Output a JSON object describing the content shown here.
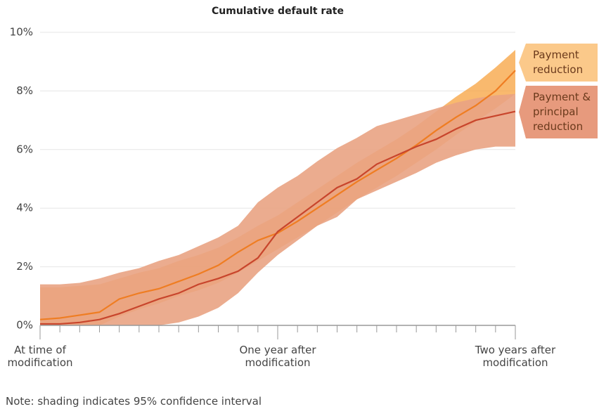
{
  "chart_data": {
    "type": "line",
    "title": "Cumulative default rate",
    "note": "Note: shading indicates 95% confidence interval",
    "x": [
      0,
      1,
      2,
      3,
      4,
      5,
      6,
      7,
      8,
      9,
      10,
      11,
      12,
      13,
      14,
      15,
      16,
      17,
      18,
      19,
      20,
      21,
      22,
      23,
      24
    ],
    "xlim": [
      0,
      24
    ],
    "xticks": [
      {
        "value": 0,
        "label": "At time of modification"
      },
      {
        "value": 12,
        "label": "One year after modification"
      },
      {
        "value": 24,
        "label": "Two years after modification"
      }
    ],
    "ylim": [
      0,
      10
    ],
    "yticks": [
      {
        "value": 0,
        "label": "0%"
      },
      {
        "value": 2,
        "label": "2%"
      },
      {
        "value": 4,
        "label": "4%"
      },
      {
        "value": 6,
        "label": "6%"
      },
      {
        "value": 8,
        "label": "8%"
      },
      {
        "value": 10,
        "label": "10%"
      }
    ],
    "grid": true,
    "legend": "right",
    "series": [
      {
        "name": "Payment reduction",
        "color": "#ef7d22",
        "band_color": "#f7a84a",
        "legend_color": "#fbc98a",
        "values": [
          0.2,
          0.25,
          0.35,
          0.45,
          0.9,
          1.1,
          1.25,
          1.5,
          1.75,
          2.05,
          2.5,
          2.9,
          3.15,
          3.55,
          4.0,
          4.45,
          4.9,
          5.3,
          5.7,
          6.15,
          6.65,
          7.1,
          7.5,
          8.0,
          8.7
        ],
        "lower": [
          0,
          0,
          0,
          0,
          0.3,
          0.55,
          0.75,
          1.0,
          1.2,
          1.45,
          1.8,
          2.2,
          2.6,
          3.0,
          3.4,
          3.85,
          4.3,
          4.7,
          5.1,
          5.55,
          6.0,
          6.5,
          6.95,
          7.4,
          7.9
        ],
        "upper": [
          1.3,
          1.3,
          1.35,
          1.4,
          1.6,
          1.8,
          1.95,
          2.2,
          2.4,
          2.65,
          3.0,
          3.4,
          3.75,
          4.2,
          4.65,
          5.1,
          5.55,
          5.95,
          6.35,
          6.8,
          7.3,
          7.8,
          8.25,
          8.8,
          9.4
        ]
      },
      {
        "name": "Payment & principal reduction",
        "color": "#c8452c",
        "band_color": "#e9a383",
        "legend_color": "#e79a7d",
        "values": [
          0.05,
          0.05,
          0.1,
          0.2,
          0.4,
          0.65,
          0.9,
          1.1,
          1.4,
          1.6,
          1.85,
          2.3,
          3.2,
          3.7,
          4.2,
          4.7,
          5.0,
          5.5,
          5.8,
          6.1,
          6.35,
          6.7,
          7.0,
          7.15,
          7.3
        ],
        "lower": [
          0,
          0,
          0,
          0,
          0,
          0,
          0,
          0.1,
          0.3,
          0.6,
          1.1,
          1.8,
          2.4,
          2.9,
          3.4,
          3.7,
          4.3,
          4.6,
          4.9,
          5.2,
          5.55,
          5.8,
          6.0,
          6.1,
          6.1
        ],
        "upper": [
          1.4,
          1.4,
          1.45,
          1.6,
          1.8,
          1.95,
          2.2,
          2.4,
          2.7,
          3.0,
          3.4,
          4.2,
          4.7,
          5.1,
          5.6,
          6.05,
          6.4,
          6.8,
          7.0,
          7.2,
          7.4,
          7.6,
          7.75,
          7.85,
          7.9
        ]
      }
    ]
  }
}
